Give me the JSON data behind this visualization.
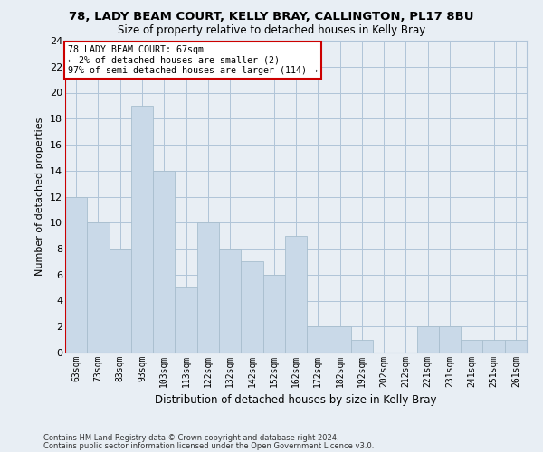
{
  "title1": "78, LADY BEAM COURT, KELLY BRAY, CALLINGTON, PL17 8BU",
  "title2": "Size of property relative to detached houses in Kelly Bray",
  "xlabel": "Distribution of detached houses by size in Kelly Bray",
  "ylabel": "Number of detached properties",
  "categories": [
    "63sqm",
    "73sqm",
    "83sqm",
    "93sqm",
    "103sqm",
    "113sqm",
    "122sqm",
    "132sqm",
    "142sqm",
    "152sqm",
    "162sqm",
    "172sqm",
    "182sqm",
    "192sqm",
    "202sqm",
    "212sqm",
    "221sqm",
    "231sqm",
    "241sqm",
    "251sqm",
    "261sqm"
  ],
  "values": [
    12,
    10,
    8,
    19,
    14,
    5,
    10,
    8,
    7,
    6,
    9,
    2,
    2,
    1,
    0,
    0,
    2,
    2,
    1,
    1,
    1
  ],
  "bar_color": "#c9d9e8",
  "bar_edge_color": "#a8bece",
  "highlight_line_color": "#cc0000",
  "annotation_lines": [
    "78 LADY BEAM COURT: 67sqm",
    "← 2% of detached houses are smaller (2)",
    "97% of semi-detached houses are larger (114) →"
  ],
  "annotation_box_color": "#cc0000",
  "ylim": [
    0,
    24
  ],
  "yticks": [
    0,
    2,
    4,
    6,
    8,
    10,
    12,
    14,
    16,
    18,
    20,
    22,
    24
  ],
  "grid_color": "#b0c4d8",
  "bg_color": "#e8eef4",
  "footer1": "Contains HM Land Registry data © Crown copyright and database right 2024.",
  "footer2": "Contains public sector information licensed under the Open Government Licence v3.0."
}
